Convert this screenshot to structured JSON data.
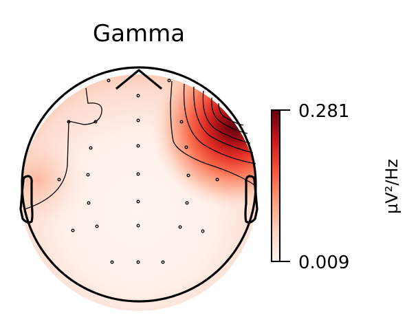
{
  "plot": {
    "title": "Gamma",
    "colorbar": {
      "max_label": "0.281",
      "min_label": "0.009",
      "unit_label": "µV²/Hz",
      "cmap": [
        "#fff5f0",
        "#fdd3c1",
        "#fb9e7f",
        "#f6553c",
        "#c9181d",
        "#67000d"
      ]
    },
    "hotspot_region": "right-frontal",
    "sensor_count": 32
  }
}
